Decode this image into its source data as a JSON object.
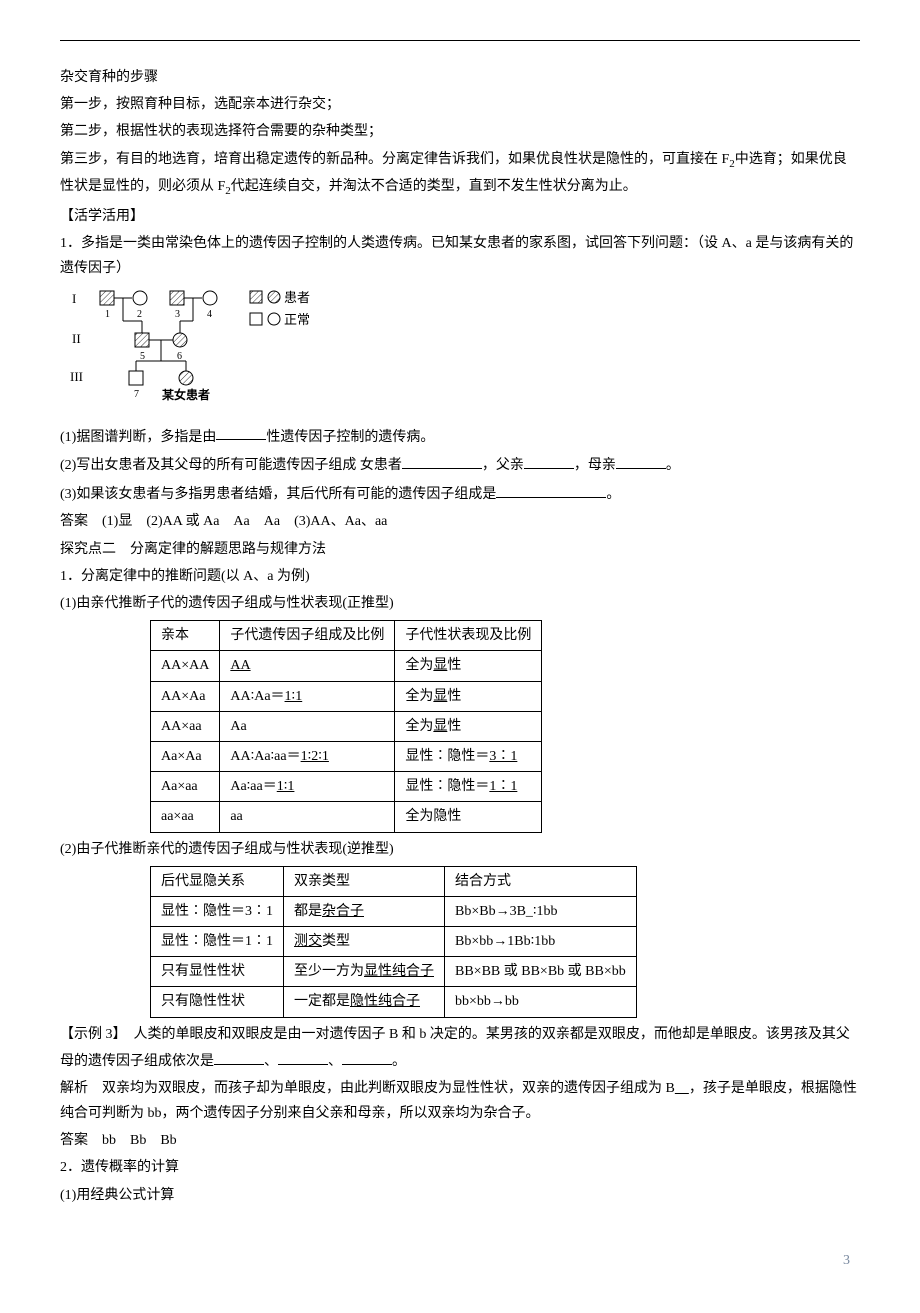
{
  "hybrid": {
    "title": "杂交育种的步骤",
    "step1": "第一步，按照育种目标，选配亲本进行杂交；",
    "step2": "第二步，根据性状的表现选择符合需要的杂种类型；",
    "step3a": "第三步，有目的地选育，培育出稳定遗传的新品种。分离定律告诉我们，如果优良性状是隐性的，可直接在 F",
    "step3b": "中选育；如果优良性状是显性的，则必须从 F",
    "step3c": "代起连续自交，并淘汰不合适的类型，直到不发生性状分离为止。"
  },
  "practice": {
    "heading": "【活学活用】",
    "q1_intro": "1．多指是一类由常染色体上的遗传因子控制的人类遗传病。已知某女患者的家系图，试回答下列问题：（设 A、a 是与该病有关的遗传因子）",
    "pedigree": {
      "legend_patient": "患者",
      "legend_normal": "正常",
      "label_female": "某女患者",
      "gen1": "I",
      "gen2": "II",
      "gen3": "III",
      "nums": [
        "1",
        "2",
        "3",
        "4",
        "5",
        "6",
        "7"
      ]
    },
    "q1_1a": "(1)据图谱判断，多指是由",
    "q1_1b": "性遗传因子控制的遗传病。",
    "q1_2a": "(2)写出女患者及其父母的所有可能遗传因子组成 女患者",
    "q1_2b": "，父亲",
    "q1_2c": "，母亲",
    "q1_2d": "。",
    "q1_3a": "(3)如果该女患者与多指男患者结婚，其后代所有可能的遗传因子组成是",
    "q1_3b": "。",
    "answer1": "答案　(1)显　(2)AA 或 Aa　Aa　Aa　(3)AA、Aa、aa"
  },
  "explore2": {
    "title": "探究点二　分离定律的解题思路与规律方法",
    "sub1": "1．分离定律中的推断问题(以 A、a 为例)",
    "t1_title": "(1)由亲代推断子代的遗传因子组成与性状表现(正推型)",
    "t1": {
      "headers": [
        "亲本",
        "子代遗传因子组成及比例",
        "子代性状表现及比例"
      ],
      "rows": [
        {
          "c0": "AA×AA",
          "c1_pre": "",
          "c1_ul": "AA",
          "c1_post": "",
          "c2_pre": "全为",
          "c2_ul": "显",
          "c2_post": "性"
        },
        {
          "c0": "AA×Aa",
          "c1_pre": "AA∶Aa＝",
          "c1_ul": "1∶1",
          "c1_post": "",
          "c2_pre": "全为",
          "c2_ul": "显",
          "c2_post": "性"
        },
        {
          "c0": "AA×aa",
          "c1_pre": "Aa",
          "c1_ul": "",
          "c1_post": "",
          "c2_pre": "全为",
          "c2_ul": "显",
          "c2_post": "性"
        },
        {
          "c0": "Aa×Aa",
          "c1_pre": "AA∶Aa∶aa＝",
          "c1_ul": "1∶2∶1",
          "c1_post": "",
          "c2_pre": "显性∶隐性＝",
          "c2_ul": "3∶1",
          "c2_post": ""
        },
        {
          "c0": "Aa×aa",
          "c1_pre": "Aa∶aa＝",
          "c1_ul": "1∶1",
          "c1_post": "",
          "c2_pre": "显性∶隐性＝",
          "c2_ul": "1∶1",
          "c2_post": ""
        },
        {
          "c0": "aa×aa",
          "c1_pre": "aa",
          "c1_ul": "",
          "c1_post": "",
          "c2_pre": "全为隐性",
          "c2_ul": "",
          "c2_post": ""
        }
      ]
    },
    "t2_title": "(2)由子代推断亲代的遗传因子组成与性状表现(逆推型)",
    "t2": {
      "headers": [
        "后代显隐关系",
        "双亲类型",
        "结合方式"
      ],
      "rows": [
        {
          "c0": "显性∶隐性＝3∶1",
          "c1_pre": "都是",
          "c1_ul": "杂合子",
          "c1_post": "",
          "c2": "Bb×Bb→3B_∶1bb"
        },
        {
          "c0": "显性∶隐性＝1∶1",
          "c1_pre": "",
          "c1_ul": "测交",
          "c1_post": "类型",
          "c2": "Bb×bb→1Bb∶1bb"
        },
        {
          "c0": "只有显性性状",
          "c1_pre": "至少一方为",
          "c1_ul": "显性纯合子",
          "c1_post": "",
          "c2": "BB×BB 或 BB×Bb 或 BB×bb"
        },
        {
          "c0": "只有隐性性状",
          "c1_pre": "一定都是",
          "c1_ul": "隐性纯合子",
          "c1_post": "",
          "c2": "bb×bb→bb"
        }
      ]
    }
  },
  "example3": {
    "title_pre": "【示例 3】　人类的单眼皮和双眼皮是由一对遗传因子 B 和 b 决定的。某男孩的双亲都是双眼皮，而他却是单眼皮。该男孩及其父母的遗传因子组成依次是",
    "title_sep": "、",
    "title_end": "。",
    "analysis_pre": "解析　双亲均为双眼皮，而孩子却为单眼皮，由此判断双眼皮为显性性状，双亲的遗传因子组成为 B",
    "analysis_post": "，孩子是单眼皮，根据隐性纯合可判断为 bb，两个遗传因子分别来自父亲和母亲，所以双亲均为杂合子。",
    "answer": "答案　bb　Bb　Bb"
  },
  "prob": {
    "h2": "2．遗传概率的计算",
    "h2_1": "(1)用经典公式计算"
  },
  "page_number": "3"
}
